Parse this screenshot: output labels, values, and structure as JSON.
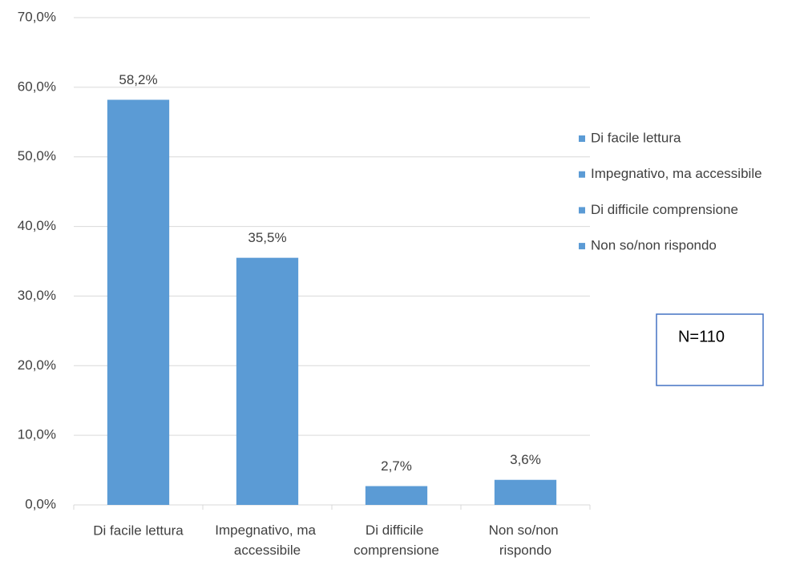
{
  "chart_data": {
    "type": "bar",
    "categories": [
      "Di facile lettura",
      "Impegnativo, ma accessibile",
      "Di difficile comprensione",
      "Non so/non rispondo"
    ],
    "values": [
      58.2,
      35.5,
      2.7,
      3.6
    ],
    "value_labels": [
      "58,2%",
      "35,5%",
      "2,7%",
      "3,6%"
    ],
    "color": "#5b9bd5",
    "ylim": [
      0,
      70
    ],
    "yticks": [
      {
        "value": 0,
        "label": "0,0%"
      },
      {
        "value": 10,
        "label": "10,0%"
      },
      {
        "value": 20,
        "label": "20,0%"
      },
      {
        "value": 30,
        "label": "30,0%"
      },
      {
        "value": 40,
        "label": "40,0%"
      },
      {
        "value": 50,
        "label": "50,0%"
      },
      {
        "value": 60,
        "label": "60,0%"
      },
      {
        "value": 70,
        "label": "70,0%"
      }
    ],
    "grid": true,
    "legend": "right",
    "annotation": "N=110"
  }
}
